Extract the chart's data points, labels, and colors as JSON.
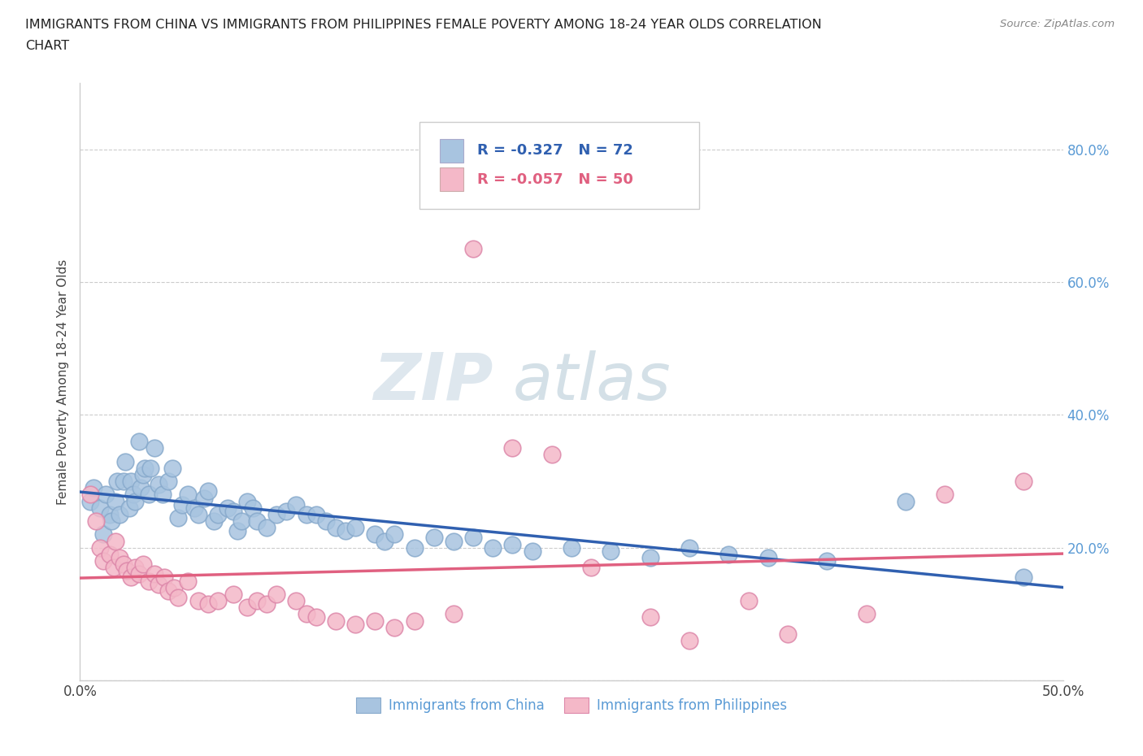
{
  "title_line1": "IMMIGRANTS FROM CHINA VS IMMIGRANTS FROM PHILIPPINES FEMALE POVERTY AMONG 18-24 YEAR OLDS CORRELATION",
  "title_line2": "CHART",
  "source": "Source: ZipAtlas.com",
  "ylabel": "Female Poverty Among 18-24 Year Olds",
  "xlim": [
    0.0,
    0.5
  ],
  "ylim": [
    0.0,
    0.9
  ],
  "xticks": [
    0.0,
    0.1,
    0.2,
    0.3,
    0.4,
    0.5
  ],
  "xticklabels": [
    "0.0%",
    "",
    "",
    "",
    "",
    "50.0%"
  ],
  "yticks_right": [
    0.2,
    0.4,
    0.6,
    0.8
  ],
  "yticklabels_right": [
    "20.0%",
    "40.0%",
    "60.0%",
    "80.0%"
  ],
  "china_R": -0.327,
  "china_N": 72,
  "phil_R": -0.057,
  "phil_N": 50,
  "china_color": "#a8c4e0",
  "phil_color": "#f4b8c8",
  "china_line_color": "#3060b0",
  "phil_line_color": "#e06080",
  "legend_label_china": "Immigrants from China",
  "legend_label_phil": "Immigrants from Philippines",
  "legend_text_color": "#5b9bd5",
  "watermark_zip": "ZIP",
  "watermark_atlas": "atlas",
  "china_x": [
    0.005,
    0.007,
    0.01,
    0.012,
    0.013,
    0.015,
    0.016,
    0.018,
    0.019,
    0.02,
    0.022,
    0.023,
    0.025,
    0.026,
    0.027,
    0.028,
    0.03,
    0.031,
    0.032,
    0.033,
    0.035,
    0.036,
    0.038,
    0.04,
    0.042,
    0.045,
    0.047,
    0.05,
    0.052,
    0.055,
    0.058,
    0.06,
    0.063,
    0.065,
    0.068,
    0.07,
    0.075,
    0.078,
    0.08,
    0.082,
    0.085,
    0.088,
    0.09,
    0.095,
    0.1,
    0.105,
    0.11,
    0.115,
    0.12,
    0.125,
    0.13,
    0.135,
    0.14,
    0.15,
    0.155,
    0.16,
    0.17,
    0.18,
    0.19,
    0.2,
    0.21,
    0.22,
    0.23,
    0.25,
    0.27,
    0.29,
    0.31,
    0.33,
    0.35,
    0.38,
    0.42,
    0.48
  ],
  "china_y": [
    0.27,
    0.29,
    0.26,
    0.22,
    0.28,
    0.25,
    0.24,
    0.27,
    0.3,
    0.25,
    0.3,
    0.33,
    0.26,
    0.3,
    0.28,
    0.27,
    0.36,
    0.29,
    0.31,
    0.32,
    0.28,
    0.32,
    0.35,
    0.295,
    0.28,
    0.3,
    0.32,
    0.245,
    0.265,
    0.28,
    0.26,
    0.25,
    0.275,
    0.285,
    0.24,
    0.25,
    0.26,
    0.255,
    0.225,
    0.24,
    0.27,
    0.26,
    0.24,
    0.23,
    0.25,
    0.255,
    0.265,
    0.25,
    0.25,
    0.24,
    0.23,
    0.225,
    0.23,
    0.22,
    0.21,
    0.22,
    0.2,
    0.215,
    0.21,
    0.215,
    0.2,
    0.205,
    0.195,
    0.2,
    0.195,
    0.185,
    0.2,
    0.19,
    0.185,
    0.18,
    0.27,
    0.155
  ],
  "phil_x": [
    0.005,
    0.008,
    0.01,
    0.012,
    0.015,
    0.017,
    0.018,
    0.02,
    0.022,
    0.024,
    0.026,
    0.028,
    0.03,
    0.032,
    0.035,
    0.038,
    0.04,
    0.043,
    0.045,
    0.048,
    0.05,
    0.055,
    0.06,
    0.065,
    0.07,
    0.078,
    0.085,
    0.09,
    0.095,
    0.1,
    0.11,
    0.115,
    0.12,
    0.13,
    0.14,
    0.15,
    0.16,
    0.17,
    0.19,
    0.2,
    0.22,
    0.24,
    0.26,
    0.29,
    0.31,
    0.34,
    0.36,
    0.4,
    0.44,
    0.48
  ],
  "phil_y": [
    0.28,
    0.24,
    0.2,
    0.18,
    0.19,
    0.17,
    0.21,
    0.185,
    0.175,
    0.165,
    0.155,
    0.17,
    0.16,
    0.175,
    0.15,
    0.16,
    0.145,
    0.155,
    0.135,
    0.14,
    0.125,
    0.15,
    0.12,
    0.115,
    0.12,
    0.13,
    0.11,
    0.12,
    0.115,
    0.13,
    0.12,
    0.1,
    0.095,
    0.09,
    0.085,
    0.09,
    0.08,
    0.09,
    0.1,
    0.65,
    0.35,
    0.34,
    0.17,
    0.095,
    0.06,
    0.12,
    0.07,
    0.1,
    0.28,
    0.3
  ]
}
